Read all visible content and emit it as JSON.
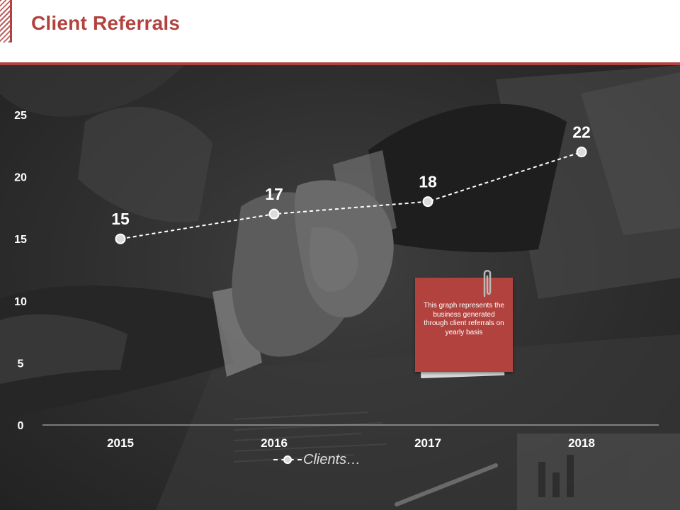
{
  "header": {
    "title": "Client Referrals"
  },
  "chart_data": {
    "type": "line",
    "categories": [
      "2015",
      "2016",
      "2017",
      "2018"
    ],
    "series": [
      {
        "name": "Clients…",
        "values": [
          15,
          17,
          18,
          22
        ]
      }
    ],
    "y_ticks": [
      "0",
      "5",
      "10",
      "15",
      "20",
      "25"
    ],
    "ylim": [
      0,
      25
    ],
    "grid": false,
    "legend_position": "bottom",
    "line_style": "dashed",
    "data_labels": true,
    "colors": {
      "line": "#ffffff",
      "marker": "#dcdcdc",
      "text": "#ffffff",
      "axis": "#cccccc"
    }
  },
  "note": {
    "text": "This graph represents the business generated through client referrals on yearly basis",
    "color": "#b2423e"
  },
  "theme": {
    "accent": "#b2423e",
    "background_photo": "handshake-photo"
  }
}
